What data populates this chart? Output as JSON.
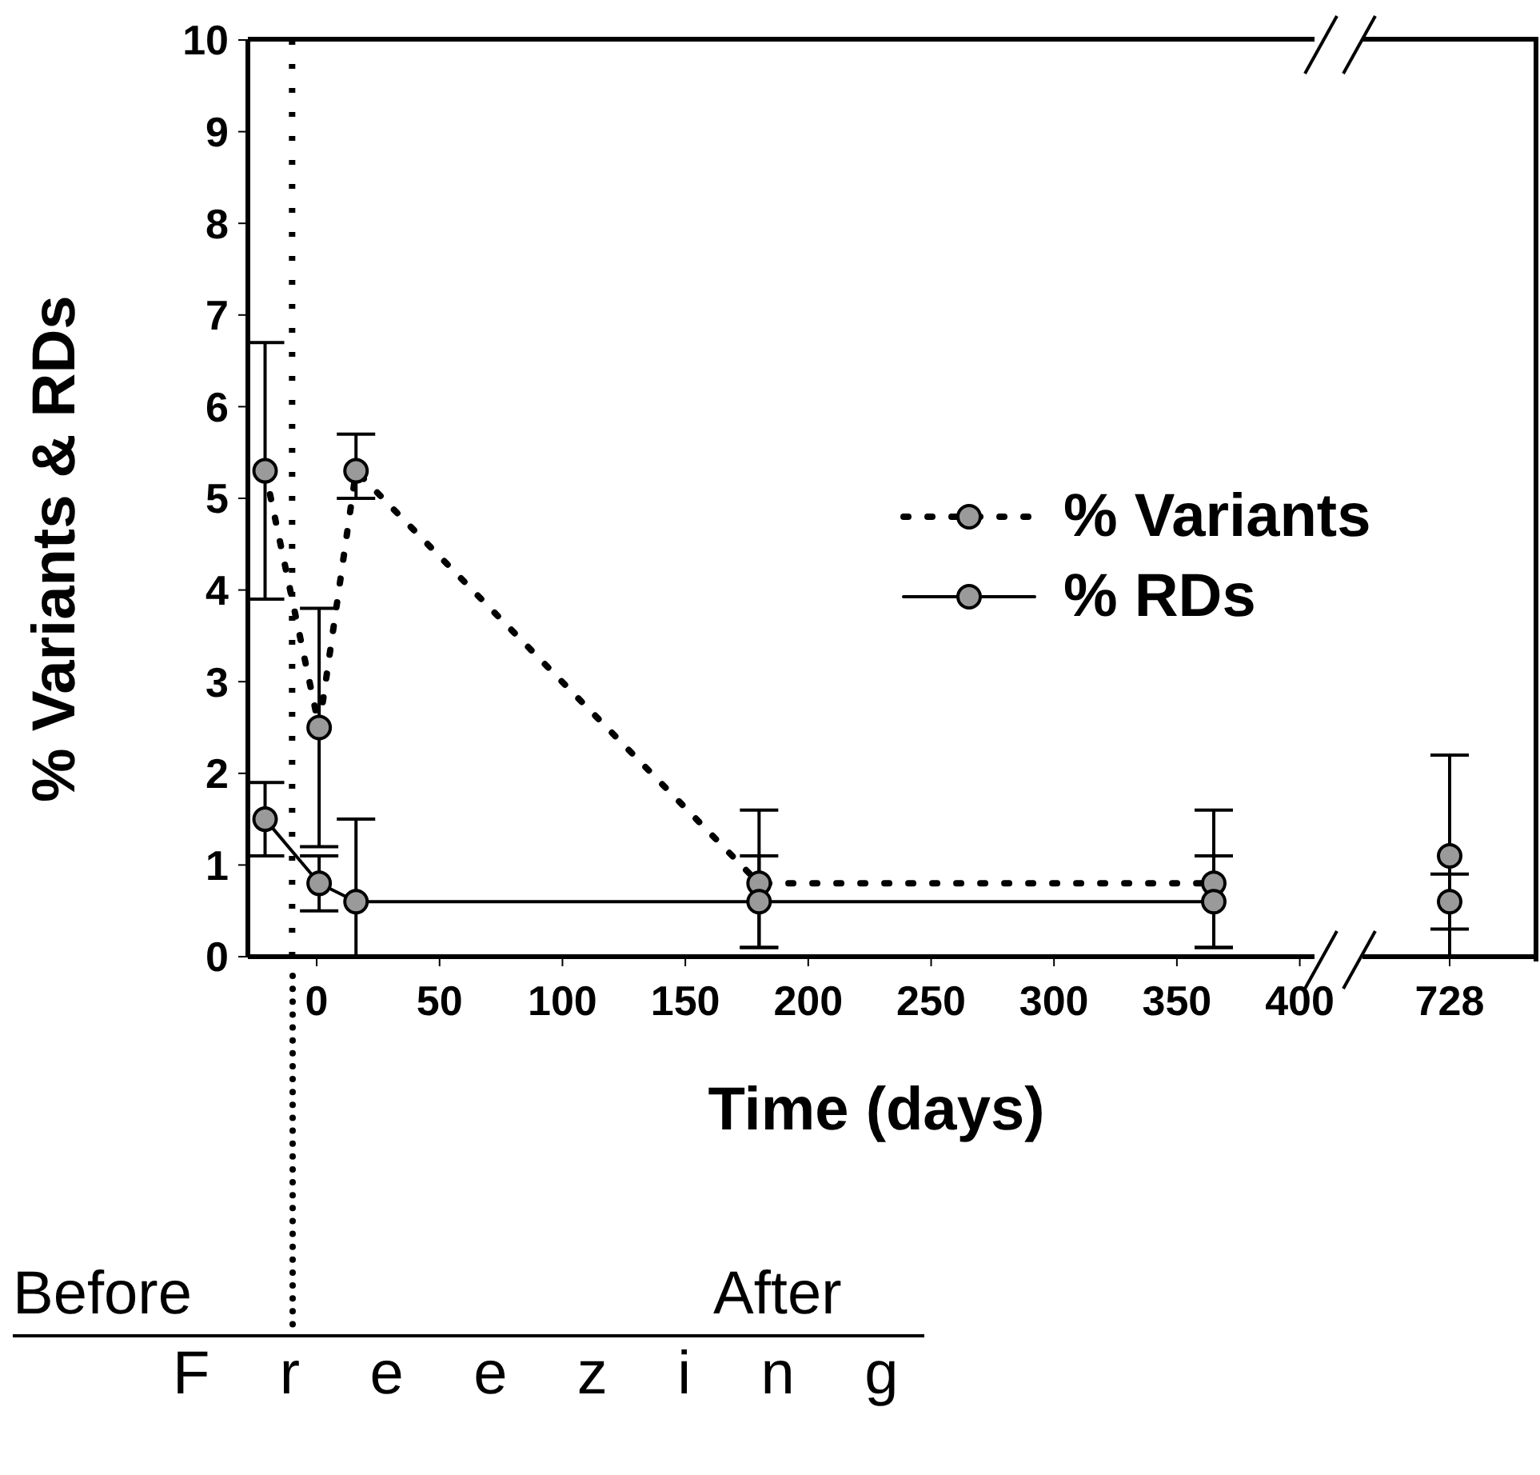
{
  "chart_data": [
    {
      "type": "line",
      "xlabel": "Time (days)",
      "ylabel": "% Variants & RDs",
      "xlim": [
        -28,
        406
      ],
      "xticks": [
        0,
        50,
        100,
        150,
        200,
        250,
        300,
        350,
        400
      ],
      "ylim": [
        0,
        10
      ],
      "yticks": [
        0,
        1,
        2,
        3,
        4,
        5,
        6,
        7,
        8,
        9,
        10
      ],
      "grid": false,
      "legend": "right",
      "marker": "circle",
      "series": [
        {
          "name": "% Variants",
          "color": "#000000",
          "line_style": "dotted",
          "x": [
            -21,
            1,
            16,
            180,
            365
          ],
          "values": [
            5.3,
            2.5,
            5.3,
            0.8,
            0.8
          ],
          "errors": [
            [
              3.9,
              6.7
            ],
            [
              1.2,
              3.8
            ],
            [
              5.0,
              5.7
            ],
            [
              0.1,
              1.6
            ],
            [
              0.1,
              1.6
            ]
          ]
        },
        {
          "name": "% RDs",
          "color": "#000000",
          "line_style": "solid",
          "x": [
            -21,
            1,
            16,
            180,
            365
          ],
          "values": [
            1.5,
            0.8,
            0.6,
            0.6,
            0.6
          ],
          "errors": [
            [
              1.1,
              1.9
            ],
            [
              0.5,
              1.1
            ],
            [
              0,
              1.5
            ],
            [
              0.1,
              1.1
            ],
            [
              0.1,
              1.1
            ]
          ]
        }
      ],
      "ref_lines": [
        {
          "axis": "x",
          "value": -10,
          "line_style": "dotted",
          "color": "#000000"
        }
      ],
      "annotations": [
        "Before",
        "After",
        "Freezing"
      ]
    },
    {
      "type": "line",
      "categories": [
        "728"
      ],
      "ylim": [
        0,
        10
      ],
      "tick_labels": "x",
      "marker": "circle",
      "series": [
        {
          "color": "#000000",
          "line_style": "dotted",
          "values": [
            1.1
          ],
          "errors": [
            [
              0,
              2.2
            ]
          ]
        },
        {
          "color": "#000000",
          "line_style": "solid",
          "values": [
            0.6
          ],
          "errors": [
            [
              0.3,
              0.9
            ]
          ]
        }
      ]
    }
  ]
}
